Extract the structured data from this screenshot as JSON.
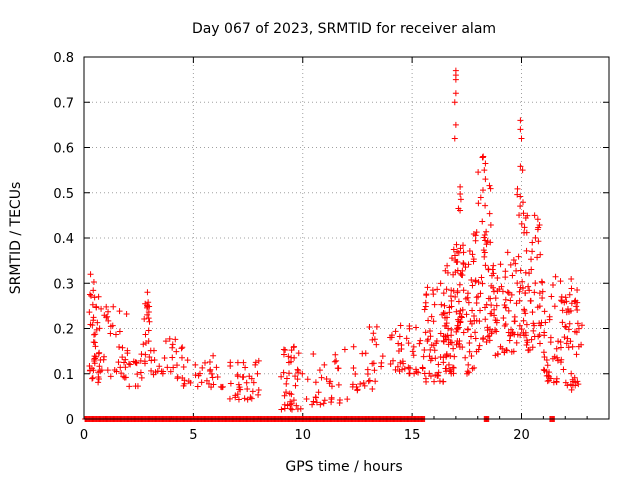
{
  "chart_data": {
    "type": "scatter",
    "title": "Day 067 of 2023, SRMTID for receiver alam",
    "xlabel": "GPS time / hours",
    "ylabel": "SRMTID / TECUs",
    "xlim": [
      0,
      24
    ],
    "ylim": [
      0,
      0.8
    ],
    "x_ticks": [
      0,
      5,
      10,
      15,
      20
    ],
    "x_tick_labels": [
      "0",
      "5",
      "10",
      "15",
      "20"
    ],
    "y_ticks": [
      0,
      0.1,
      0.2,
      0.3,
      0.4,
      0.5,
      0.6,
      0.7,
      0.8
    ],
    "y_tick_labels": [
      "0",
      "0.1",
      "0.2",
      "0.3",
      "0.4",
      "0.5",
      "0.6",
      "0.7",
      "0.8"
    ],
    "grid": true,
    "marker": "+",
    "color": "#ff0000",
    "series": [
      {
        "name": "SRMTID",
        "bands": [
          {
            "x0": 0.2,
            "x1": 0.8,
            "ymin": 0.08,
            "ymax": 0.32,
            "n": 45
          },
          {
            "x0": 0.8,
            "x1": 2.0,
            "ymin": 0.09,
            "ymax": 0.25,
            "n": 35
          },
          {
            "x0": 2.0,
            "x1": 2.7,
            "ymin": 0.07,
            "ymax": 0.15,
            "n": 15
          },
          {
            "x0": 2.7,
            "x1": 3.0,
            "ymin": 0.1,
            "ymax": 0.29,
            "n": 20
          },
          {
            "x0": 3.0,
            "x1": 4.5,
            "ymin": 0.09,
            "ymax": 0.18,
            "n": 30
          },
          {
            "x0": 4.5,
            "x1": 6.5,
            "ymin": 0.07,
            "ymax": 0.14,
            "n": 30
          },
          {
            "x0": 6.5,
            "x1": 8.0,
            "ymin": 0.04,
            "ymax": 0.13,
            "n": 35
          },
          {
            "x0": 9.0,
            "x1": 10.0,
            "ymin": 0.02,
            "ymax": 0.16,
            "n": 40
          },
          {
            "x0": 10.0,
            "x1": 12.5,
            "ymin": 0.03,
            "ymax": 0.16,
            "n": 40
          },
          {
            "x0": 12.5,
            "x1": 14.0,
            "ymin": 0.06,
            "ymax": 0.21,
            "n": 25
          },
          {
            "x0": 14.0,
            "x1": 15.5,
            "ymin": 0.1,
            "ymax": 0.21,
            "n": 40
          },
          {
            "x0": 15.5,
            "x1": 16.5,
            "ymin": 0.08,
            "ymax": 0.3,
            "n": 60
          },
          {
            "x0": 16.5,
            "x1": 17.0,
            "ymin": 0.1,
            "ymax": 0.38,
            "n": 50
          },
          {
            "x0": 17.0,
            "x1": 17.3,
            "ymin": 0.15,
            "ymax": 0.52,
            "n": 40
          },
          {
            "x0": 17.3,
            "x1": 18.0,
            "ymin": 0.1,
            "ymax": 0.42,
            "n": 50
          },
          {
            "x0": 18.0,
            "x1": 18.6,
            "ymin": 0.15,
            "ymax": 0.58,
            "n": 50
          },
          {
            "x0": 18.6,
            "x1": 19.8,
            "ymin": 0.14,
            "ymax": 0.37,
            "n": 70
          },
          {
            "x0": 19.8,
            "x1": 20.2,
            "ymin": 0.18,
            "ymax": 0.56,
            "n": 35
          },
          {
            "x0": 20.2,
            "x1": 21.0,
            "ymin": 0.15,
            "ymax": 0.45,
            "n": 50
          },
          {
            "x0": 21.0,
            "x1": 22.0,
            "ymin": 0.08,
            "ymax": 0.32,
            "n": 50
          },
          {
            "x0": 22.0,
            "x1": 22.8,
            "ymin": 0.06,
            "ymax": 0.31,
            "n": 45
          }
        ],
        "spikes": [
          [
            17.0,
            0.77
          ],
          [
            17.0,
            0.76
          ],
          [
            17.0,
            0.75
          ],
          [
            17.0,
            0.72
          ],
          [
            16.95,
            0.7
          ],
          [
            17.0,
            0.65
          ],
          [
            16.95,
            0.62
          ],
          [
            18.25,
            0.58
          ],
          [
            18.3,
            0.55
          ],
          [
            18.35,
            0.53
          ],
          [
            19.95,
            0.66
          ],
          [
            19.95,
            0.64
          ],
          [
            20.0,
            0.62
          ],
          [
            20.05,
            0.55
          ],
          [
            20.6,
            0.45
          ],
          [
            9.6,
            0.16
          ],
          [
            2.9,
            0.28
          ],
          [
            0.3,
            0.32
          ]
        ],
        "zero_segments": [
          [
            0.05,
            15.6
          ],
          [
            18.3,
            18.5
          ],
          [
            21.3,
            21.5
          ]
        ]
      }
    ]
  }
}
